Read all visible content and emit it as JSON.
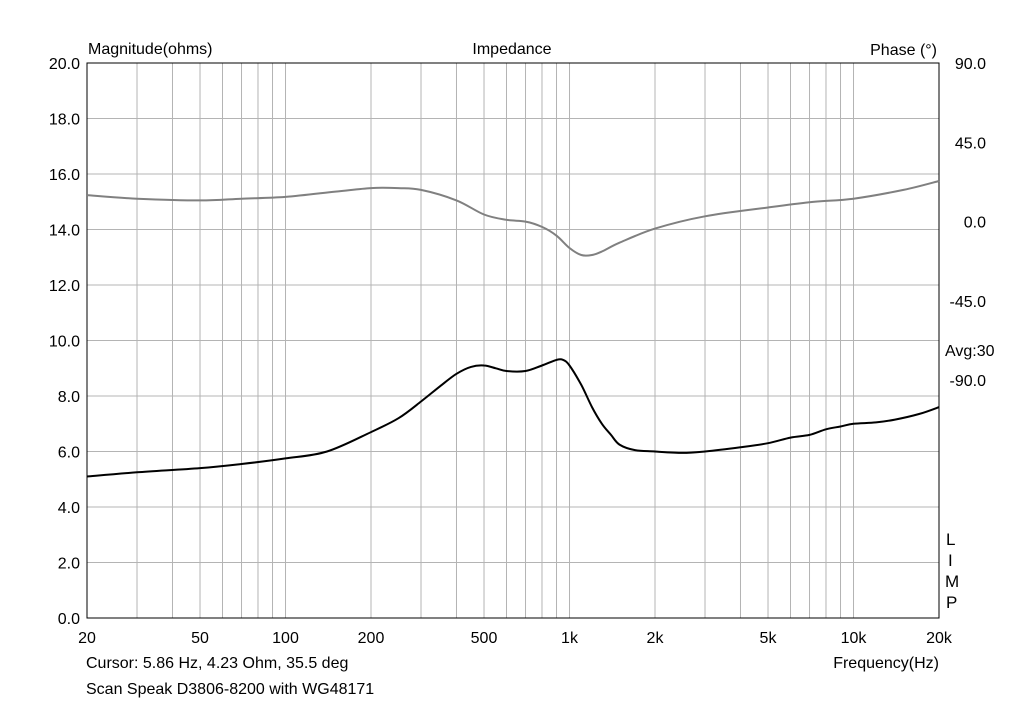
{
  "chart_data": {
    "type": "line",
    "title": "Impedance",
    "left_axis_label": "Magnitude(ohms)",
    "right_axis_label": "Phase (°)",
    "xlabel": "Frequency(Hz)",
    "x_scale": "log",
    "xlim": [
      20,
      20000
    ],
    "ylim": [
      0,
      20
    ],
    "y2lim": [
      -225,
      90
    ],
    "grid": true,
    "x_ticks": [
      {
        "v": 20,
        "label": "20"
      },
      {
        "v": 50,
        "label": "50"
      },
      {
        "v": 100,
        "label": "100"
      },
      {
        "v": 200,
        "label": "200"
      },
      {
        "v": 500,
        "label": "500"
      },
      {
        "v": 1000,
        "label": "1k"
      },
      {
        "v": 2000,
        "label": "2k"
      },
      {
        "v": 5000,
        "label": "5k"
      },
      {
        "v": 10000,
        "label": "10k"
      },
      {
        "v": 20000,
        "label": "20k"
      }
    ],
    "y_ticks": [
      {
        "v": 0,
        "label": "0.0"
      },
      {
        "v": 2,
        "label": "2.0"
      },
      {
        "v": 4,
        "label": "4.0"
      },
      {
        "v": 6,
        "label": "6.0"
      },
      {
        "v": 8,
        "label": "8.0"
      },
      {
        "v": 10,
        "label": "10.0"
      },
      {
        "v": 12,
        "label": "12.0"
      },
      {
        "v": 14,
        "label": "14.0"
      },
      {
        "v": 16,
        "label": "16.0"
      },
      {
        "v": 18,
        "label": "18.0"
      },
      {
        "v": 20,
        "label": "20.0"
      }
    ],
    "y2_ticks": [
      {
        "v": 90,
        "label": "90.0"
      },
      {
        "v": 45,
        "label": "45.0"
      },
      {
        "v": 0,
        "label": "0.0"
      },
      {
        "v": -45,
        "label": "-45.0"
      },
      {
        "v": -90,
        "label": "-90.0"
      }
    ],
    "avg_label": "Avg:30",
    "lim_letters": [
      "L",
      "I",
      "M",
      "P"
    ],
    "series": [
      {
        "axis": "left",
        "color": "#000000",
        "points": [
          [
            20,
            5.1
          ],
          [
            30,
            5.25
          ],
          [
            50,
            5.4
          ],
          [
            70,
            5.55
          ],
          [
            100,
            5.75
          ],
          [
            140,
            6.0
          ],
          [
            200,
            6.7
          ],
          [
            250,
            7.2
          ],
          [
            300,
            7.8
          ],
          [
            350,
            8.35
          ],
          [
            400,
            8.8
          ],
          [
            450,
            9.05
          ],
          [
            500,
            9.1
          ],
          [
            550,
            9.0
          ],
          [
            600,
            8.9
          ],
          [
            700,
            8.9
          ],
          [
            800,
            9.1
          ],
          [
            900,
            9.3
          ],
          [
            950,
            9.3
          ],
          [
            1000,
            9.1
          ],
          [
            1100,
            8.4
          ],
          [
            1200,
            7.6
          ],
          [
            1300,
            7.0
          ],
          [
            1400,
            6.6
          ],
          [
            1500,
            6.25
          ],
          [
            1700,
            6.05
          ],
          [
            2000,
            6.0
          ],
          [
            2500,
            5.95
          ],
          [
            3000,
            6.0
          ],
          [
            4000,
            6.15
          ],
          [
            5000,
            6.3
          ],
          [
            6000,
            6.5
          ],
          [
            7000,
            6.6
          ],
          [
            8000,
            6.8
          ],
          [
            9000,
            6.9
          ],
          [
            10000,
            7.0
          ],
          [
            12000,
            7.05
          ],
          [
            14000,
            7.15
          ],
          [
            17000,
            7.35
          ],
          [
            20000,
            7.6
          ]
        ]
      },
      {
        "axis": "right",
        "color": "#808080",
        "points": [
          [
            20,
            15
          ],
          [
            30,
            13
          ],
          [
            50,
            12
          ],
          [
            70,
            13
          ],
          [
            100,
            14
          ],
          [
            150,
            17
          ],
          [
            200,
            19
          ],
          [
            250,
            19
          ],
          [
            300,
            18
          ],
          [
            400,
            12
          ],
          [
            500,
            4
          ],
          [
            600,
            1
          ],
          [
            700,
            0
          ],
          [
            800,
            -3
          ],
          [
            900,
            -8
          ],
          [
            1000,
            -15
          ],
          [
            1100,
            -19
          ],
          [
            1200,
            -19
          ],
          [
            1300,
            -17
          ],
          [
            1500,
            -12
          ],
          [
            2000,
            -4
          ],
          [
            3000,
            3
          ],
          [
            5000,
            8
          ],
          [
            7000,
            11
          ],
          [
            10000,
            13
          ],
          [
            15000,
            18
          ],
          [
            20000,
            23
          ]
        ]
      }
    ]
  },
  "footer": {
    "cursor": "Cursor: 5.86 Hz, 4.23 Ohm, 35.5 deg",
    "description": "Scan Speak D3806-8200 with WG48171"
  }
}
